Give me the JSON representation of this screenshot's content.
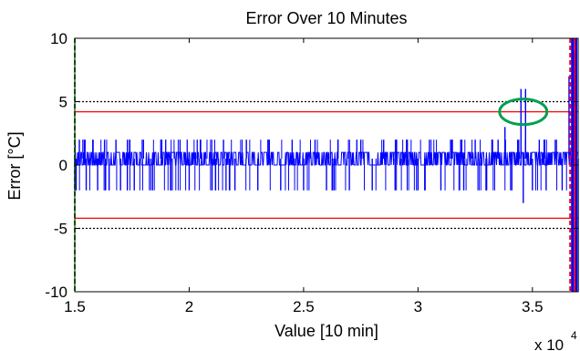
{
  "chart_data": {
    "type": "line",
    "title": "Error Over 10 Minutes",
    "xlabel": "Value [10 min]",
    "ylabel": "Error [°C]",
    "x_scale_note": "x 10",
    "x_scale_exponent": "4",
    "xlim": [
      1.5,
      3.7
    ],
    "ylim": [
      -10,
      10
    ],
    "x_ticks": [
      1.5,
      2,
      2.5,
      3,
      3.5
    ],
    "x_tick_labels": [
      "1.5",
      "2",
      "2.5",
      "3",
      "3.5"
    ],
    "y_ticks": [
      -10,
      -5,
      0,
      5,
      10
    ],
    "y_tick_labels": [
      "-10",
      "-5",
      "0",
      "5",
      "10"
    ],
    "grid": false,
    "colors": {
      "series": "#0000ff",
      "threshold_red": "#ff0000",
      "threshold_black": "#000000",
      "marker_green": "#00a000",
      "highlight_ellipse": "#00a050"
    },
    "reference_lines": [
      {
        "y": 5,
        "style": "dotted",
        "color": "#000000"
      },
      {
        "y": -5,
        "style": "dotted",
        "color": "#000000"
      },
      {
        "y": 4.2,
        "style": "solid",
        "color": "#ff0000"
      },
      {
        "y": -4.2,
        "style": "solid",
        "color": "#ff0000"
      }
    ],
    "vertical_markers": [
      {
        "x": 1.5,
        "style": "dashed",
        "color": "#00a000"
      },
      {
        "x": 3.665,
        "style": "dashed",
        "color": "#ff0000"
      },
      {
        "x": 3.685,
        "style": "solid",
        "color": "#ff0000"
      }
    ],
    "highlight": {
      "x": 3.46,
      "y": 4.2,
      "shape": "ellipse",
      "color": "#00a050"
    },
    "series": [
      {
        "baseline_band": [
          0,
          1
        ],
        "x": [
          1.5,
          1.52,
          1.55,
          1.58,
          1.6,
          1.63,
          1.65,
          1.68,
          1.7,
          1.73,
          1.76,
          1.8,
          1.84,
          1.88,
          1.92,
          1.96,
          2.0,
          2.05,
          2.1,
          2.15,
          2.2,
          2.25,
          2.3,
          2.35,
          2.4,
          2.45,
          2.5,
          2.55,
          2.6,
          2.65,
          2.7,
          2.75,
          2.8,
          2.85,
          2.9,
          2.95,
          3.0,
          3.05,
          3.1,
          3.15,
          3.2,
          3.25,
          3.3,
          3.35,
          3.38,
          3.41,
          3.44,
          3.45,
          3.46,
          3.47,
          3.5,
          3.53,
          3.56,
          3.6,
          3.63,
          3.66,
          3.68,
          3.7
        ],
        "spike_values": [
          -2,
          2,
          -2,
          2,
          -2,
          2,
          -2,
          2,
          -2,
          2,
          -2,
          2,
          -2,
          2,
          -2,
          2,
          -2,
          2,
          -2,
          2,
          -2,
          2,
          -2,
          2,
          -2,
          2,
          -2,
          2,
          -2,
          2,
          -2,
          2,
          -2,
          2,
          -2,
          2,
          -2,
          2,
          -2,
          2,
          -2,
          2,
          -2,
          2,
          3,
          -2,
          2,
          6,
          -3,
          6,
          -2,
          2,
          -2,
          2,
          -2,
          7,
          9,
          -10
        ]
      }
    ]
  }
}
